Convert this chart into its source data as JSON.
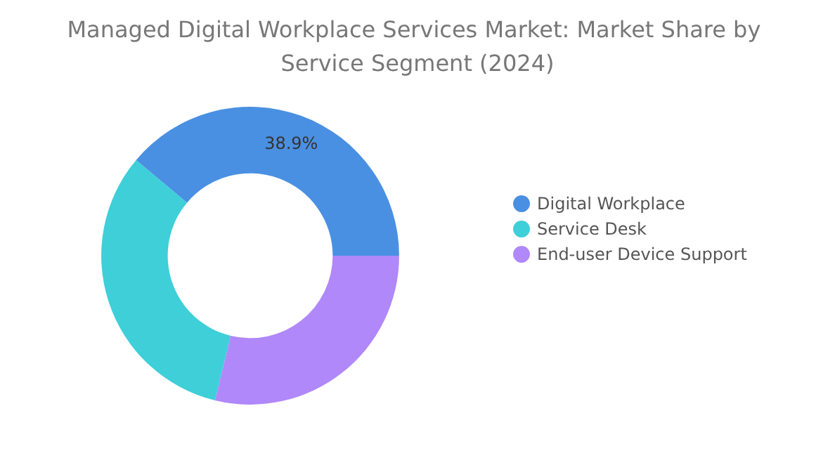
{
  "chart_data": {
    "type": "donut",
    "title": "Managed Digital Workplace Services Market: Market Share by Service Segment (2024)",
    "categories": [
      "Digital Workplace",
      "Service Desk",
      "End-user Device Support"
    ],
    "values": [
      38.9,
      32.3,
      28.8
    ],
    "colors": [
      "#4a90e2",
      "#3ecfd9",
      "#b088f9"
    ],
    "value_labels": [
      "38.9%",
      null,
      null
    ],
    "legend": "right"
  }
}
